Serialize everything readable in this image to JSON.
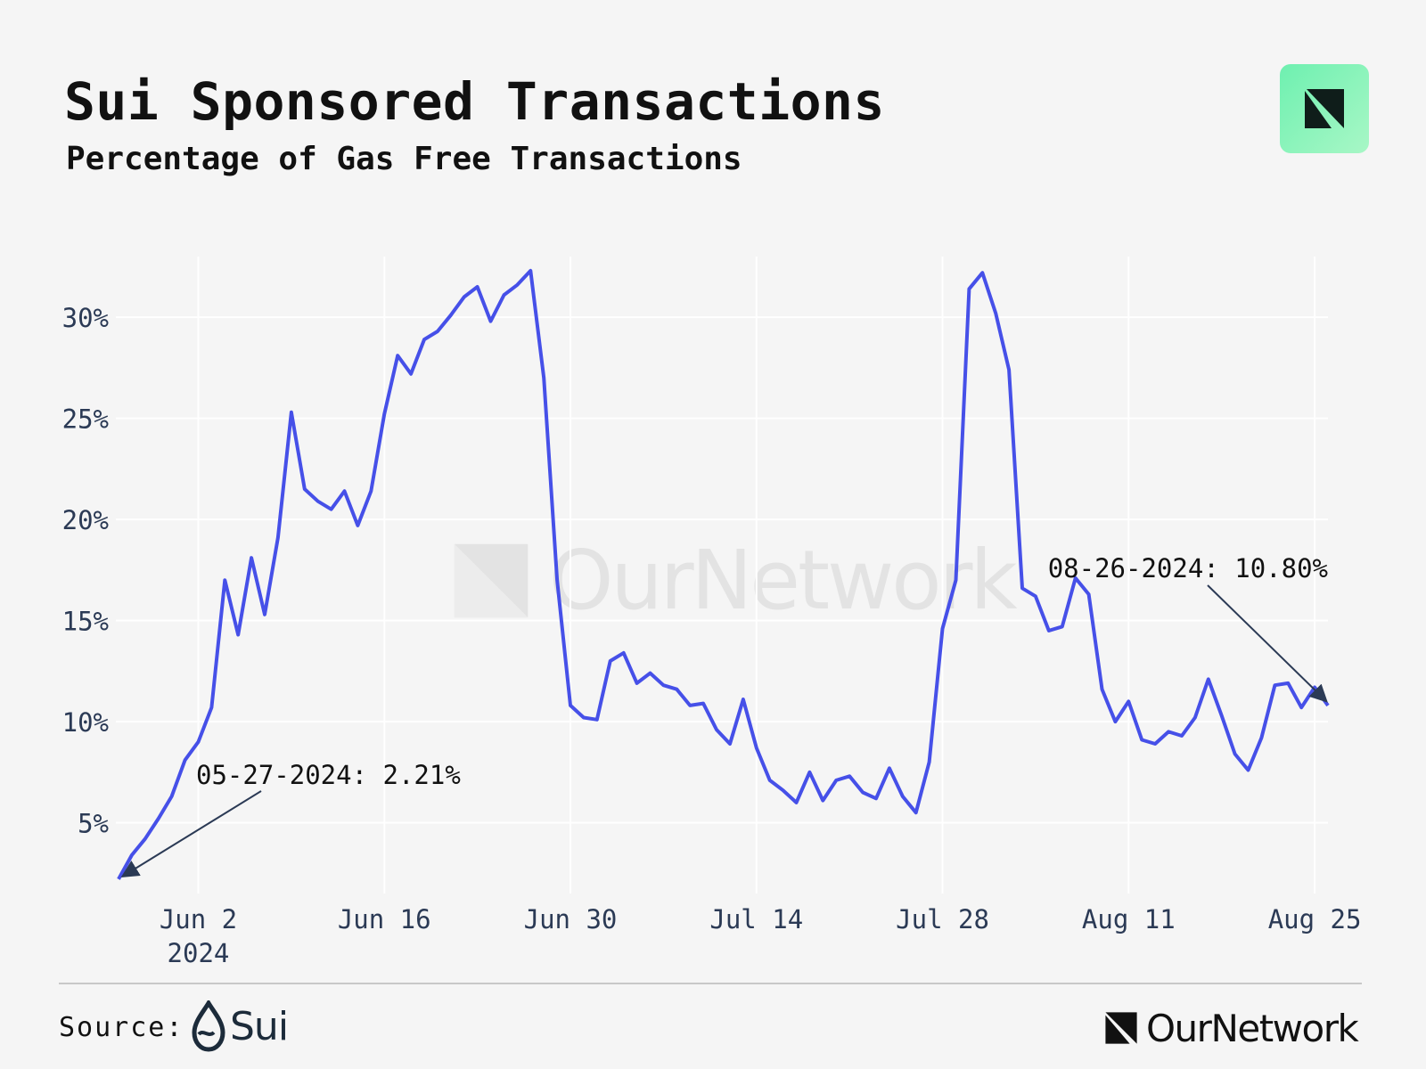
{
  "header": {
    "title": "Sui Sponsored Transactions",
    "subtitle": "Percentage of Gas Free Transactions"
  },
  "brand": {
    "name": "OurNetwork",
    "badge_color": "#7ef3b8",
    "icon": "ournetwork-logo-icon"
  },
  "footer": {
    "source_label": "Source:",
    "source_name": "Sui",
    "source_icon": "sui-drop-icon"
  },
  "colors": {
    "line": "#4650e8",
    "grid": "#ffffff",
    "axis_text": "#2b3a55",
    "annotation_arrow": "#2b3a55"
  },
  "chart_data": {
    "type": "line",
    "start_date": "2024-05-27",
    "y_unit": "%",
    "ylim": [
      1.5,
      33
    ],
    "yticks": [
      5,
      10,
      15,
      20,
      25,
      30
    ],
    "ytick_labels": [
      "5%",
      "10%",
      "15%",
      "20%",
      "25%",
      "30%"
    ],
    "xticks": [
      {
        "date": "2024-06-02",
        "label": "Jun 2",
        "sublabel": "2024"
      },
      {
        "date": "2024-06-16",
        "label": "Jun 16",
        "sublabel": ""
      },
      {
        "date": "2024-06-30",
        "label": "Jun 30",
        "sublabel": ""
      },
      {
        "date": "2024-07-14",
        "label": "Jul 14",
        "sublabel": ""
      },
      {
        "date": "2024-07-28",
        "label": "Jul 28",
        "sublabel": ""
      },
      {
        "date": "2024-08-11",
        "label": "Aug 11",
        "sublabel": ""
      },
      {
        "date": "2024-08-25",
        "label": "Aug 25",
        "sublabel": ""
      }
    ],
    "series": [
      {
        "values": [
          2.21,
          3.4,
          4.2,
          5.2,
          6.3,
          8.1,
          9.0,
          10.7,
          17.0,
          14.3,
          18.1,
          15.3,
          19.1,
          25.3,
          21.5,
          20.9,
          20.5,
          21.4,
          19.7,
          21.4,
          25.2,
          28.1,
          27.2,
          28.9,
          29.3,
          30.1,
          31.0,
          31.5,
          29.8,
          31.1,
          31.6,
          32.3,
          27.0,
          17.0,
          10.8,
          10.2,
          10.1,
          13.0,
          13.4,
          11.9,
          12.4,
          11.8,
          11.6,
          10.8,
          10.9,
          9.6,
          8.9,
          11.1,
          8.7,
          7.1,
          6.6,
          6.0,
          7.5,
          6.1,
          7.1,
          7.3,
          6.5,
          6.2,
          7.7,
          6.3,
          5.5,
          8.0,
          14.6,
          17.0,
          31.4,
          32.2,
          30.2,
          27.4,
          16.6,
          16.2,
          14.5,
          14.7,
          17.1,
          16.3,
          11.6,
          10.0,
          11.0,
          9.1,
          8.9,
          9.5,
          9.3,
          10.2,
          12.1,
          10.3,
          8.4,
          7.6,
          9.2,
          11.8,
          11.9,
          10.7,
          11.7,
          10.8
        ]
      }
    ],
    "annotations": [
      {
        "label": "05-27-2024: 2.21%",
        "date": "2024-05-27",
        "value": 2.21
      },
      {
        "label": "08-26-2024: 10.80%",
        "date": "2024-08-26",
        "value": 10.8
      }
    ]
  }
}
